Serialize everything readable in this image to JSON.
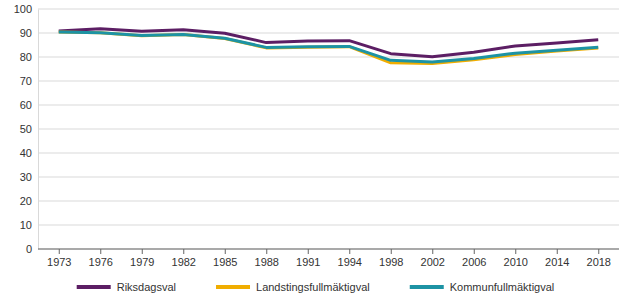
{
  "chart_data": {
    "type": "line",
    "categories": [
      "1973",
      "1976",
      "1979",
      "1982",
      "1985",
      "1988",
      "1991",
      "1994",
      "1998",
      "2002",
      "2006",
      "2010",
      "2014",
      "2018"
    ],
    "series": [
      {
        "name": "Riksdagsval",
        "color": "#5c1e64",
        "values": [
          90.8,
          91.8,
          90.7,
          91.4,
          89.9,
          86.0,
          86.7,
          86.8,
          81.4,
          80.1,
          82.0,
          84.6,
          85.8,
          87.2
        ]
      },
      {
        "name": "Landstingsfullmäktigval",
        "color": "#f0ad00",
        "values": [
          90.4,
          90.1,
          88.9,
          89.4,
          87.7,
          83.8,
          84.1,
          84.3,
          77.6,
          77.3,
          78.8,
          81.0,
          82.5,
          83.7
        ]
      },
      {
        "name": "Kommunfullmäktigval",
        "color": "#1d93a4",
        "values": [
          90.4,
          90.1,
          89.0,
          89.4,
          87.8,
          84.0,
          84.3,
          84.4,
          78.6,
          77.9,
          79.4,
          81.6,
          82.8,
          84.1
        ]
      }
    ],
    "ylim": [
      0,
      100
    ],
    "yticks": [
      0,
      10,
      20,
      30,
      40,
      50,
      60,
      70,
      80,
      90,
      100
    ],
    "grid": true,
    "legend": "bottom"
  }
}
